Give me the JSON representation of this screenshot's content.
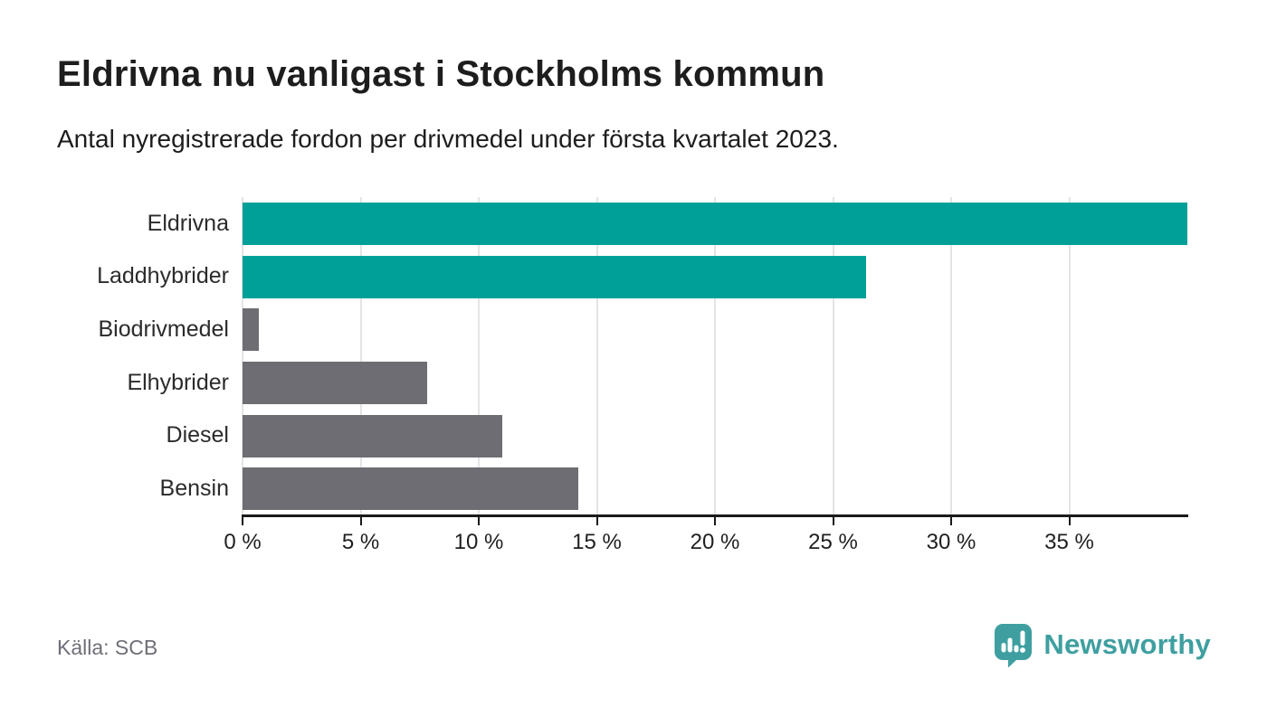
{
  "header": {
    "title": "Eldrivna nu vanligast i Stockholms kommun",
    "subtitle": "Antal nyregistrerade fordon per drivmedel under första kvartalet 2023."
  },
  "footer": {
    "source": "Källa: SCB",
    "brand_name": "Newsworthy"
  },
  "colors": {
    "highlight_teal": "#00a099",
    "neutral_gray": "#6e6d73",
    "axis": "#1a1a1a",
    "gridline": "#e4e4e6",
    "text_dark": "#1d1d1d",
    "muted_text": "#6f6e78",
    "brand_teal": "#3f9fa0"
  },
  "chart_data": {
    "type": "bar",
    "orientation": "horizontal",
    "title": "Eldrivna nu vanligast i Stockholms kommun",
    "subtitle": "Antal nyregistrerade fordon per drivmedel under första kvartalet 2023.",
    "source": "Källa: SCB",
    "categories": [
      "Eldrivna",
      "Laddhybrider",
      "Biodrivmedel",
      "Elhybrider",
      "Diesel",
      "Bensin"
    ],
    "values": [
      40.0,
      26.4,
      0.7,
      7.8,
      11.0,
      14.2
    ],
    "unit": "%",
    "bar_colors": [
      "#00a099",
      "#00a099",
      "#6e6d73",
      "#6e6d73",
      "#6e6d73",
      "#6e6d73"
    ],
    "highlighted_categories": [
      "Eldrivna",
      "Laddhybrider"
    ],
    "xlim": [
      0,
      40
    ],
    "xticks": [
      0,
      5,
      10,
      15,
      20,
      25,
      30,
      35
    ],
    "xtick_suffix": " %",
    "grid": true,
    "legend": false
  }
}
